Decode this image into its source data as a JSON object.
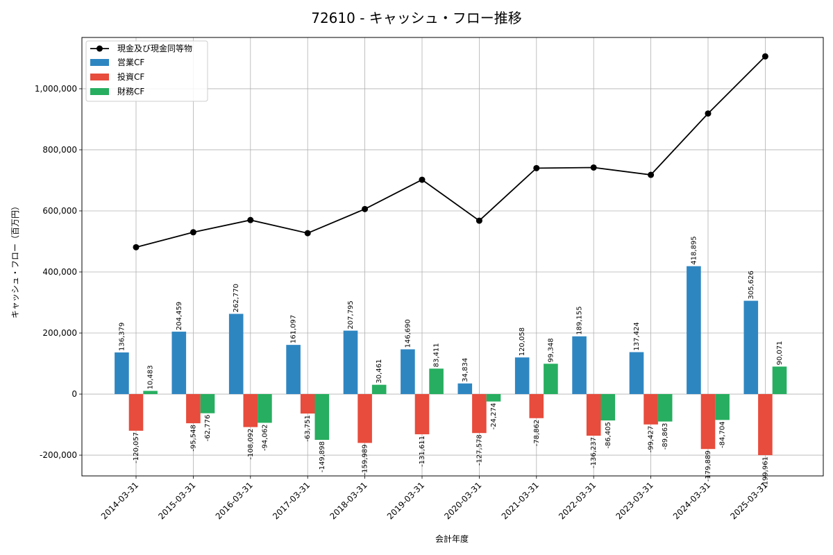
{
  "chart_data": {
    "type": "bar+line",
    "title": "72610 - キャッシュ・フロー推移",
    "xlabel": "会計年度",
    "ylabel": "キャッシュ・フロー（百万円）",
    "ylim": [
      -268000,
      1168000
    ],
    "yticks": [
      -200000,
      0,
      200000,
      400000,
      600000,
      800000,
      1000000
    ],
    "ytick_labels": [
      "-200,000",
      "0",
      "200,000",
      "400,000",
      "600,000",
      "800,000",
      "1,000,000"
    ],
    "categories": [
      "2014-03-31",
      "2015-03-31",
      "2016-03-31",
      "2017-03-31",
      "2018-03-31",
      "2019-03-31",
      "2020-03-31",
      "2021-03-31",
      "2022-03-31",
      "2023-03-31",
      "2024-03-31",
      "2025-03-31"
    ],
    "grid": true,
    "legend_position": "top-left",
    "line_series": {
      "name": "現金及び現金同等物",
      "color": "#000000",
      "values": [
        481000,
        530000,
        570000,
        527000,
        606000,
        702000,
        568000,
        740000,
        742000,
        718000,
        919000,
        1106000
      ]
    },
    "series": [
      {
        "name": "営業CF",
        "color": "#2e86c1",
        "values": [
          136379,
          204459,
          262770,
          161097,
          207795,
          146690,
          34834,
          120058,
          189155,
          137424,
          418895,
          305626
        ],
        "labels": [
          "136,379",
          "204,459",
          "262,770",
          "161,097",
          "207,795",
          "146,690",
          "34,834",
          "120,058",
          "189,155",
          "137,424",
          "418,895",
          "305,626"
        ]
      },
      {
        "name": "投資CF",
        "color": "#e74c3c",
        "values": [
          -120057,
          -95548,
          -108092,
          -63751,
          -159989,
          -131611,
          -127578,
          -78862,
          -136237,
          -99427,
          -179889,
          -199961
        ],
        "labels": [
          "-120,057",
          "-95,548",
          "-108,092",
          "-63,751",
          "-159,989",
          "-131,611",
          "-127,578",
          "-78,862",
          "-136,237",
          "-99,427",
          "-179,889",
          "-199,961"
        ]
      },
      {
        "name": "財務CF",
        "color": "#27ae60",
        "values": [
          10483,
          -62776,
          -94062,
          -149898,
          30461,
          83411,
          -24274,
          99348,
          -86405,
          -89863,
          -84704,
          90071
        ],
        "labels": [
          "10,483",
          "-62,776",
          "-94,062",
          "-149,898",
          "30,461",
          "83,411",
          "-24,274",
          "99,348",
          "-86,405",
          "-89,863",
          "-84,704",
          "90,071"
        ]
      }
    ]
  }
}
